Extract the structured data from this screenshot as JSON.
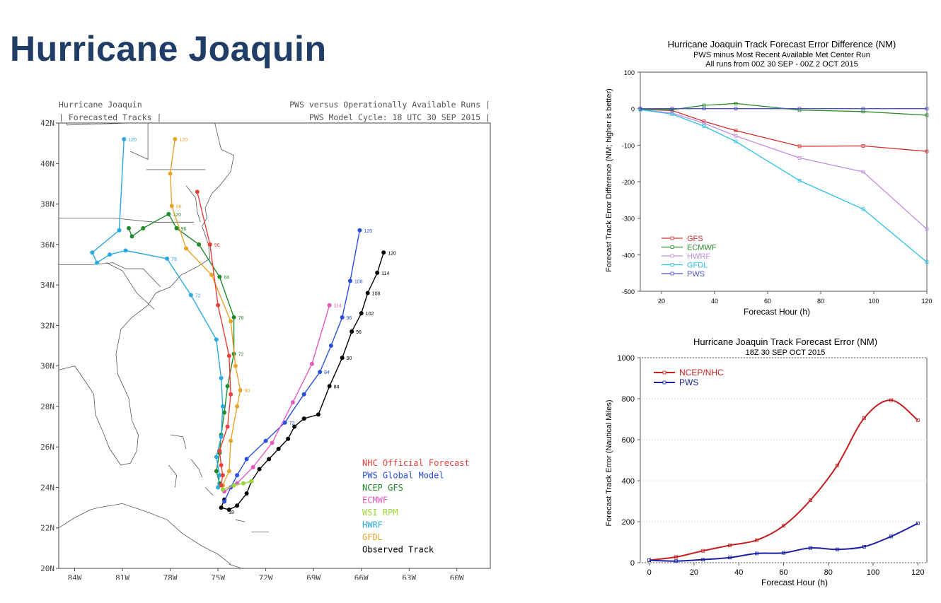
{
  "slide": {
    "title": "Hurricane Joaquin"
  },
  "map": {
    "header": {
      "left1": "Hurricane Joaquin",
      "left2": "| Forecasted Tracks |",
      "right1": "PWS versus Operationally Available Runs |",
      "right2": "PWS Model Cycle: 18 UTC 30 SEP 2015 |"
    },
    "lat_labels": [
      "42N",
      "40N",
      "38N",
      "36N",
      "34N",
      "32N",
      "30N",
      "28N",
      "26N",
      "24N",
      "22N",
      "20N"
    ],
    "lon_labels": [
      "84W",
      "81W",
      "78W",
      "75W",
      "72W",
      "69W",
      "66W",
      "63W",
      "60W"
    ],
    "legend": [
      {
        "label": "NHC Official Forecast",
        "color": "#e8413c"
      },
      {
        "label": "PWS Global Model",
        "color": "#2a4fd8"
      },
      {
        "label": "NCEP GFS",
        "color": "#1f8a2a"
      },
      {
        "label": "ECMWF",
        "color": "#e45bbf"
      },
      {
        "label": "WSI RPM",
        "color": "#9ad83a"
      },
      {
        "label": "HWRF",
        "color": "#2aa8e0"
      },
      {
        "label": "GFDL",
        "color": "#e8a32a"
      },
      {
        "label": "Observed Track",
        "color": "#000000"
      }
    ],
    "tracks": [
      {
        "name": "Observed Track",
        "color": "#000000",
        "points": [
          [
            -74.6,
            23.4
          ],
          [
            -74.8,
            23.0
          ],
          [
            -74.3,
            22.9
          ],
          [
            -73.8,
            23.1
          ],
          [
            -73.2,
            23.7
          ],
          [
            -72.9,
            24.3
          ],
          [
            -72.4,
            24.9
          ],
          [
            -71.8,
            25.4
          ],
          [
            -71.2,
            25.9
          ],
          [
            -70.6,
            26.4
          ],
          [
            -70.2,
            27.0
          ],
          [
            -69.6,
            27.4
          ],
          [
            -68.7,
            27.6
          ],
          [
            -68.0,
            29.0
          ],
          [
            -67.2,
            30.4
          ],
          [
            -66.6,
            31.7
          ],
          [
            -66.0,
            32.6
          ],
          [
            -65.6,
            33.6
          ],
          [
            -65.0,
            34.6
          ],
          [
            -64.6,
            35.6
          ]
        ],
        "labels": [
          [
            -74.6,
            22.8,
            "18"
          ],
          [
            -68.0,
            29.0,
            "84"
          ],
          [
            -67.2,
            30.4,
            "90"
          ],
          [
            -66.6,
            31.7,
            "96"
          ],
          [
            -66.0,
            32.6,
            "102"
          ],
          [
            -65.6,
            33.6,
            "108"
          ],
          [
            -65.0,
            34.6,
            "114"
          ],
          [
            -64.6,
            35.6,
            "120"
          ]
        ]
      },
      {
        "name": "PWS Global Model",
        "color": "#2a4fd8",
        "points": [
          [
            -74.6,
            23.3
          ],
          [
            -74.2,
            24.0
          ],
          [
            -73.8,
            24.6
          ],
          [
            -73.2,
            25.4
          ],
          [
            -72.0,
            26.3
          ],
          [
            -70.8,
            27.2
          ],
          [
            -69.6,
            28.6
          ],
          [
            -68.6,
            29.7
          ],
          [
            -67.9,
            31.0
          ],
          [
            -67.2,
            32.4
          ],
          [
            -66.7,
            34.2
          ],
          [
            -66.1,
            36.7
          ]
        ],
        "labels": [
          [
            -70.8,
            27.2,
            "72"
          ],
          [
            -68.6,
            29.7,
            "84"
          ],
          [
            -67.2,
            32.4,
            "96"
          ],
          [
            -66.7,
            34.2,
            "108"
          ],
          [
            -66.1,
            36.7,
            "120"
          ]
        ]
      },
      {
        "name": "ECMWF",
        "color": "#e45bbf",
        "points": [
          [
            -74.6,
            23.8
          ],
          [
            -73.8,
            24.2
          ],
          [
            -72.8,
            25.0
          ],
          [
            -71.6,
            26.2
          ],
          [
            -70.3,
            28.2
          ],
          [
            -69.1,
            30.1
          ],
          [
            -68.0,
            33.0
          ]
        ],
        "labels": [
          [
            -68.0,
            33.0,
            "114"
          ]
        ]
      },
      {
        "name": "WSI RPM",
        "color": "#9ad83a",
        "points": [
          [
            -74.7,
            23.9
          ],
          [
            -74.0,
            24.1
          ],
          [
            -73.4,
            24.2
          ],
          [
            -72.9,
            24.3
          ]
        ],
        "labels": []
      },
      {
        "name": "NCEP GFS",
        "color": "#1f8a2a",
        "points": [
          [
            -74.9,
            24.2
          ],
          [
            -75.1,
            24.8
          ],
          [
            -74.9,
            25.7
          ],
          [
            -74.8,
            26.6
          ],
          [
            -74.6,
            27.7
          ],
          [
            -74.4,
            29.0
          ],
          [
            -74.0,
            30.6
          ],
          [
            -74.0,
            32.4
          ],
          [
            -74.9,
            34.4
          ],
          [
            -76.2,
            36.0
          ],
          [
            -77.6,
            36.8
          ],
          [
            -78.1,
            37.5
          ],
          [
            -79.7,
            36.8
          ],
          [
            -80.4,
            36.4
          ],
          [
            -80.6,
            36.8
          ]
        ],
        "labels": [
          [
            -74.0,
            30.6,
            "72"
          ],
          [
            -74.0,
            32.4,
            "78"
          ],
          [
            -74.9,
            34.4,
            "84"
          ],
          [
            -77.6,
            36.8,
            "96"
          ],
          [
            -78.1,
            37.5,
            "120"
          ]
        ]
      },
      {
        "name": "HWRF",
        "color": "#2aa8e0",
        "points": [
          [
            -75.0,
            24.0
          ],
          [
            -74.9,
            24.6
          ],
          [
            -75.1,
            25.5
          ],
          [
            -74.8,
            26.5
          ],
          [
            -74.7,
            28.0
          ],
          [
            -74.8,
            29.4
          ],
          [
            -75.1,
            31.3
          ],
          [
            -76.7,
            33.5
          ],
          [
            -78.2,
            35.3
          ],
          [
            -80.8,
            35.7
          ],
          [
            -81.8,
            35.5
          ],
          [
            -82.6,
            35.1
          ],
          [
            -82.9,
            35.6
          ],
          [
            -81.2,
            36.7
          ],
          [
            -80.9,
            41.2
          ]
        ],
        "labels": [
          [
            -76.7,
            33.5,
            "72"
          ],
          [
            -78.2,
            35.3,
            "78"
          ],
          [
            -80.9,
            41.2,
            "120"
          ]
        ]
      },
      {
        "name": "GFDL",
        "color": "#e8a32a",
        "points": [
          [
            -74.7,
            24.1
          ],
          [
            -74.3,
            24.8
          ],
          [
            -74.2,
            26.3
          ],
          [
            -73.8,
            28.0
          ],
          [
            -73.6,
            28.8
          ],
          [
            -73.9,
            30.0
          ],
          [
            -74.2,
            32.2
          ],
          [
            -75.4,
            34.5
          ],
          [
            -77.0,
            35.8
          ],
          [
            -77.9,
            37.9
          ],
          [
            -78.0,
            39.5
          ],
          [
            -77.7,
            41.2
          ]
        ],
        "labels": [
          [
            -73.6,
            28.8,
            "90"
          ],
          [
            -77.9,
            37.9,
            "96"
          ],
          [
            -77.7,
            41.2,
            "120"
          ]
        ]
      },
      {
        "name": "NHC Official Forecast",
        "color": "#e8413c",
        "points": [
          [
            -74.8,
            24.1
          ],
          [
            -74.7,
            24.6
          ],
          [
            -74.8,
            25.1
          ],
          [
            -74.9,
            25.8
          ],
          [
            -74.4,
            27.0
          ],
          [
            -74.2,
            28.6
          ],
          [
            -74.3,
            30.5
          ],
          [
            -75.0,
            33.0
          ],
          [
            -75.5,
            36.0
          ],
          [
            -76.3,
            38.6
          ]
        ],
        "labels": [
          [
            -75.5,
            36.0,
            "96"
          ]
        ]
      }
    ]
  },
  "chart_data": [
    {
      "type": "line",
      "title": "Hurricane Joaquin Track Forecast Error Difference (NM)",
      "subtitle1": "PWS minus Most Recent Available Met Center Run",
      "subtitle2": "All runs from 00Z 30 SEP - 00Z 2 OCT 2015",
      "xlabel": "Forecast Hour (h)",
      "ylabel": "Forecast Track Error Difference (NM; higher is better)",
      "xlim": [
        12,
        120
      ],
      "ylim": [
        -500,
        100
      ],
      "xticks": [
        20,
        40,
        60,
        80,
        100,
        120
      ],
      "yticks": [
        100,
        0,
        -100,
        -200,
        -300,
        -400,
        -500
      ],
      "legend_position": "bottom-left",
      "series": [
        {
          "name": "GFS",
          "color": "#d92b2b",
          "x": [
            12,
            24,
            36,
            48,
            72,
            96,
            120
          ],
          "y": [
            -2,
            -5,
            -35,
            -60,
            -103,
            -102,
            -117
          ]
        },
        {
          "name": "ECMWF",
          "color": "#2a8a2a",
          "x": [
            12,
            24,
            36,
            48,
            72,
            96,
            120
          ],
          "y": [
            -2,
            -3,
            9,
            14,
            -4,
            -8,
            -18
          ]
        },
        {
          "name": "HWRF",
          "color": "#c38ce0",
          "x": [
            12,
            24,
            36,
            48,
            72,
            96,
            120
          ],
          "y": [
            -3,
            -12,
            -40,
            -75,
            -135,
            -173,
            -330
          ]
        },
        {
          "name": "GFDL",
          "color": "#2ac0e8",
          "x": [
            12,
            24,
            36,
            48,
            72,
            96,
            120
          ],
          "y": [
            -3,
            -15,
            -48,
            -90,
            -197,
            -275,
            -420
          ]
        },
        {
          "name": "PWS",
          "color": "#4a50c8",
          "x": [
            12,
            24,
            36,
            48,
            72,
            96,
            120
          ],
          "y": [
            0,
            0,
            0,
            0,
            0,
            0,
            0
          ]
        }
      ]
    },
    {
      "type": "line",
      "title": "Hurricane Joaquin Track Forecast Error (NM)",
      "subtitle1": "18Z 30 SEP OCT 2015",
      "xlabel": "Forecast Hour (h)",
      "ylabel": "Forecast Track Error (Nautical Miles)",
      "xlim": [
        -4,
        124
      ],
      "ylim": [
        0,
        1000
      ],
      "xticks": [
        0,
        20,
        40,
        60,
        80,
        100,
        120
      ],
      "yticks": [
        0,
        200,
        400,
        600,
        800,
        1000
      ],
      "legend_position": "top-left",
      "series": [
        {
          "name": "NCEP/NHC",
          "color": "#c41f1f",
          "x": [
            0,
            12,
            24,
            36,
            48,
            60,
            72,
            84,
            96,
            108,
            120
          ],
          "y": [
            12,
            28,
            58,
            85,
            110,
            180,
            305,
            475,
            705,
            793,
            695
          ]
        },
        {
          "name": "PWS",
          "color": "#1a1fa0",
          "x": [
            0,
            12,
            24,
            36,
            48,
            60,
            72,
            84,
            96,
            108,
            120
          ],
          "y": [
            12,
            8,
            15,
            25,
            45,
            48,
            72,
            65,
            78,
            128,
            192
          ]
        }
      ]
    }
  ]
}
